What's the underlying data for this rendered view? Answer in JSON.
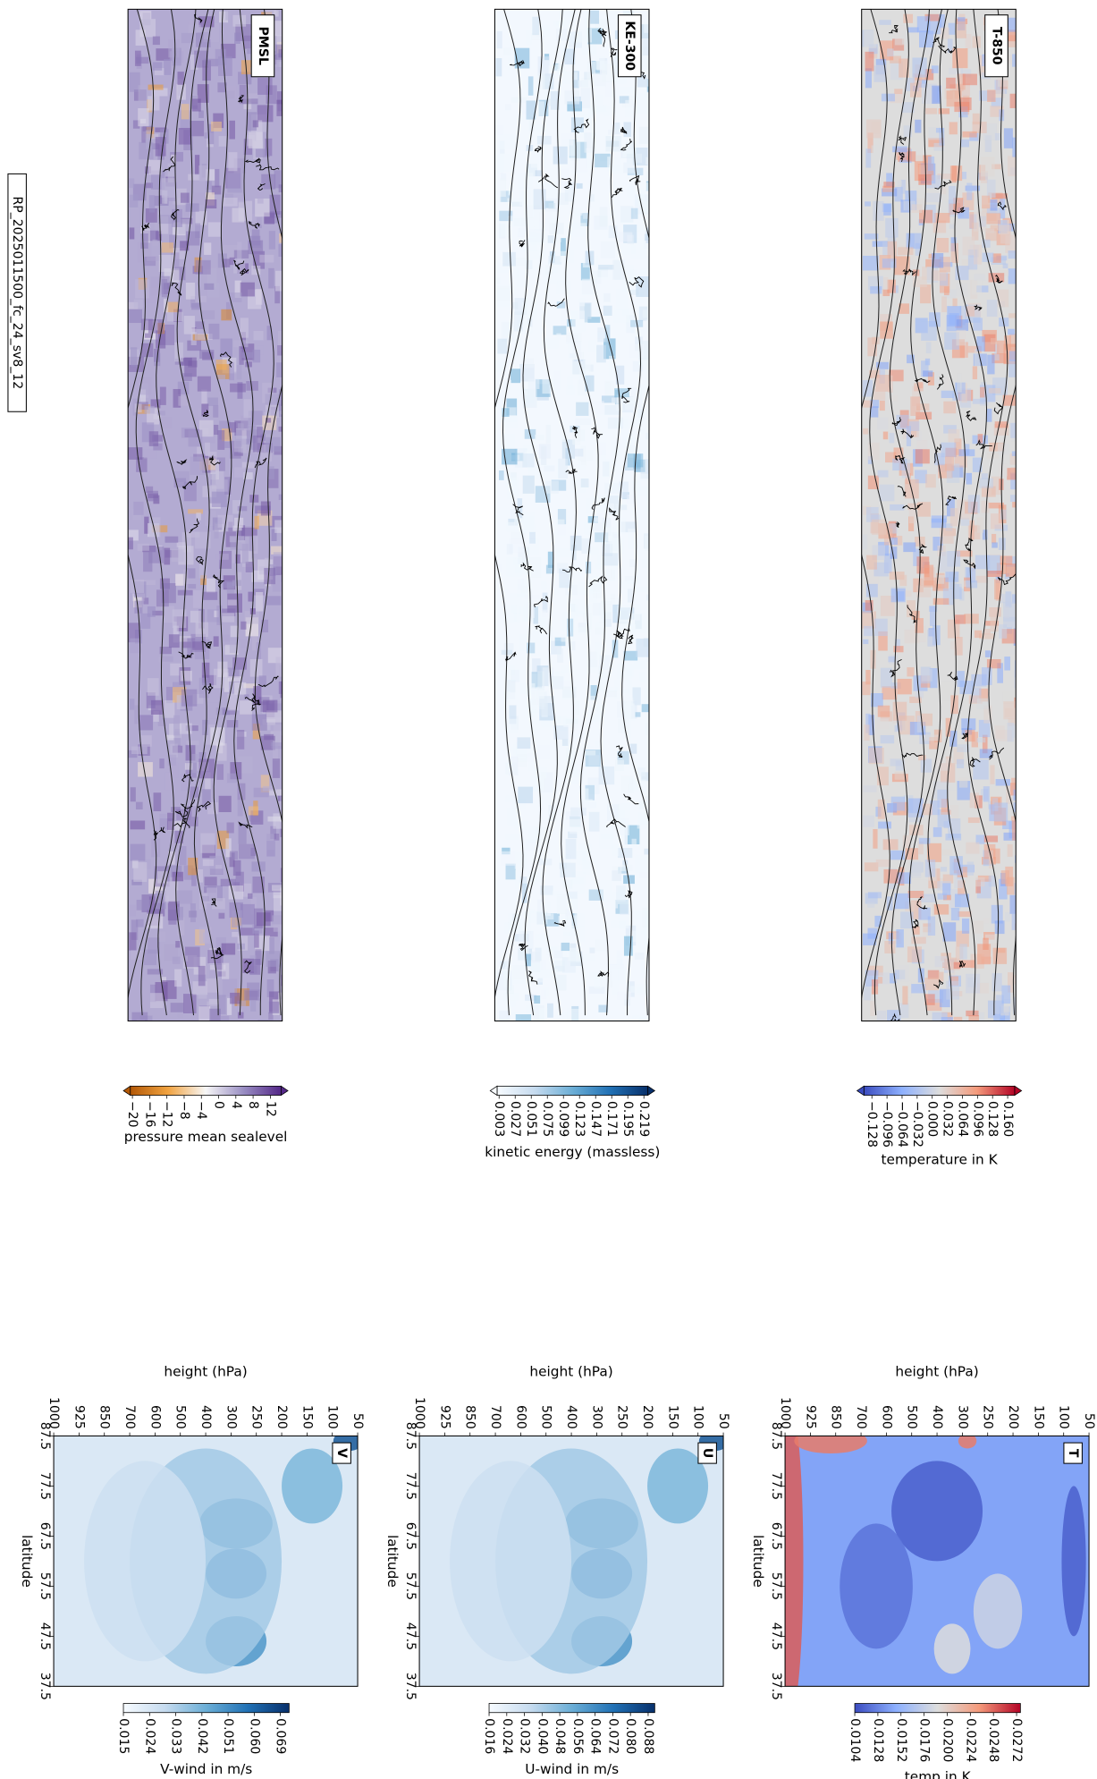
{
  "figure_title": "RP_2025011500_fc_24_sv8_12",
  "chart_data": [
    {
      "type": "map",
      "title": "PMSL",
      "colorbar": {
        "label": "pressure mean sealevel",
        "extend": "both",
        "clim": [
          -20.5,
          14.5
        ],
        "colors": [
          "#b35806",
          "#f1a340",
          "#f7f7f7",
          "#998ec3",
          "#542788"
        ],
        "ticks": [
          {
            "value": -20,
            "label": "−20"
          },
          {
            "value": -16,
            "label": "−16"
          },
          {
            "value": -12,
            "label": "−12"
          },
          {
            "value": -8,
            "label": "−8"
          },
          {
            "value": -4,
            "label": "−4"
          },
          0,
          4,
          8,
          12
        ]
      }
    },
    {
      "type": "map",
      "title": "KE-300",
      "colorbar": {
        "label": "kinetic energy (massless)",
        "extend": "both",
        "clim": [
          0.0,
          0.225
        ],
        "colors": [
          "#f7fbff",
          "#c6dbef",
          "#6baed6",
          "#2171b5",
          "#08306b"
        ],
        "ticks": [
          0.003,
          0.027,
          0.051,
          0.075,
          0.099,
          0.123,
          0.147,
          0.171,
          0.195,
          0.219
        ]
      }
    },
    {
      "type": "map",
      "title": "T-850",
      "colorbar": {
        "label": "temperature in K",
        "extend": "both",
        "clim": [
          -0.145,
          0.175
        ],
        "colors": [
          "#3b4cc0",
          "#8db0fe",
          "#dddddd",
          "#f49a7b",
          "#b40426"
        ],
        "ticks": [
          {
            "value": -0.128,
            "label": "−0.128"
          },
          {
            "value": -0.096,
            "label": "−0.096"
          },
          {
            "value": -0.064,
            "label": "−0.064"
          },
          {
            "value": -0.032,
            "label": "−0.032"
          },
          {
            "value": 0,
            "label": "0.000"
          },
          0.032,
          0.064,
          0.096,
          0.128,
          {
            "value": 0.16,
            "label": "0.160"
          }
        ]
      }
    },
    {
      "type": "contour",
      "title": "V",
      "xlabel": "height (hPa)",
      "ylabel": "latitude",
      "categories": [
        1000,
        925,
        850,
        700,
        600,
        500,
        400,
        300,
        250,
        200,
        150,
        100,
        50
      ],
      "ylim": [
        87.5,
        37.5
      ],
      "yticks": [
        87.5,
        77.5,
        67.5,
        57.5,
        47.5,
        37.5
      ],
      "colorbar": {
        "label": "V-wind in m/s",
        "clim": [
          0.015,
          0.072
        ],
        "colors": [
          "#f7fbff",
          "#c6dbef",
          "#6baed6",
          "#2171b5",
          "#08306b"
        ],
        "ticks": [
          0.015,
          0.024,
          0.033,
          0.042,
          0.051,
          {
            "value": 0.06,
            "label": "0.060"
          },
          0.069
        ]
      }
    },
    {
      "type": "contour",
      "title": "U",
      "xlabel": "height (hPa)",
      "ylabel": "latitude",
      "categories": [
        1000,
        925,
        850,
        700,
        600,
        500,
        400,
        300,
        250,
        200,
        150,
        100,
        50
      ],
      "ylim": [
        87.5,
        37.5
      ],
      "yticks": [
        87.5,
        77.5,
        67.5,
        57.5,
        47.5,
        37.5
      ],
      "colorbar": {
        "label": "U-wind in m/s",
        "clim": [
          0.016,
          0.091
        ],
        "colors": [
          "#f7fbff",
          "#c6dbef",
          "#6baed6",
          "#2171b5",
          "#08306b"
        ],
        "ticks": [
          0.016,
          0.024,
          0.032,
          {
            "value": 0.04,
            "label": "0.040"
          },
          0.048,
          0.056,
          0.064,
          0.072,
          {
            "value": 0.08,
            "label": "0.080"
          },
          0.088
        ]
      }
    },
    {
      "type": "contour",
      "title": "T",
      "xlabel": "height (hPa)",
      "ylabel": "latitude",
      "categories": [
        1000,
        925,
        850,
        700,
        600,
        500,
        400,
        300,
        250,
        200,
        150,
        100,
        50
      ],
      "ylim": [
        87.5,
        37.5
      ],
      "yticks": [
        87.5,
        77.5,
        67.5,
        57.5,
        47.5,
        37.5
      ],
      "colorbar": {
        "label": "temp in K",
        "clim": [
          0.0104,
          0.0276
        ],
        "colors": [
          "#3b4cc0",
          "#8db0fe",
          "#dddddd",
          "#f49a7b",
          "#b40426"
        ],
        "ticks": [
          0.0104,
          0.0128,
          0.0152,
          0.0176,
          {
            "value": 0.02,
            "label": "0.0200"
          },
          0.0224,
          0.0248,
          0.0272
        ]
      }
    }
  ]
}
